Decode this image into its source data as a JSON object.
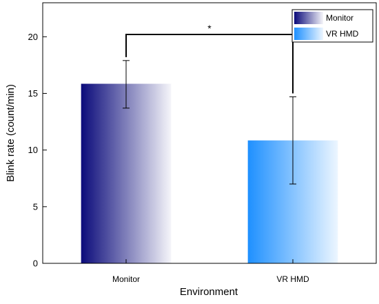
{
  "chart_data": {
    "type": "bar",
    "categories": [
      "Monitor",
      "VR HMD"
    ],
    "values": [
      15.85,
      10.85
    ],
    "error_lower": [
      13.7,
      7.0
    ],
    "error_upper": [
      17.9,
      14.7
    ],
    "xlabel": "Environment",
    "ylabel": "Blink rate (count/min)",
    "ylim": [
      0,
      23
    ],
    "yticks": [
      0,
      5,
      10,
      15,
      20
    ],
    "grid": false,
    "legend_placement": "top-right",
    "legend": [
      {
        "label": "Monitor",
        "color": "#0a0a7a"
      },
      {
        "label": "VR HMD",
        "color": "#1e90ff"
      }
    ],
    "significance": {
      "label": "*",
      "between": [
        "Monitor",
        "VR HMD"
      ],
      "y": 20.2
    },
    "bar_colors": [
      "#0a0a7a",
      "#1e90ff"
    ]
  }
}
